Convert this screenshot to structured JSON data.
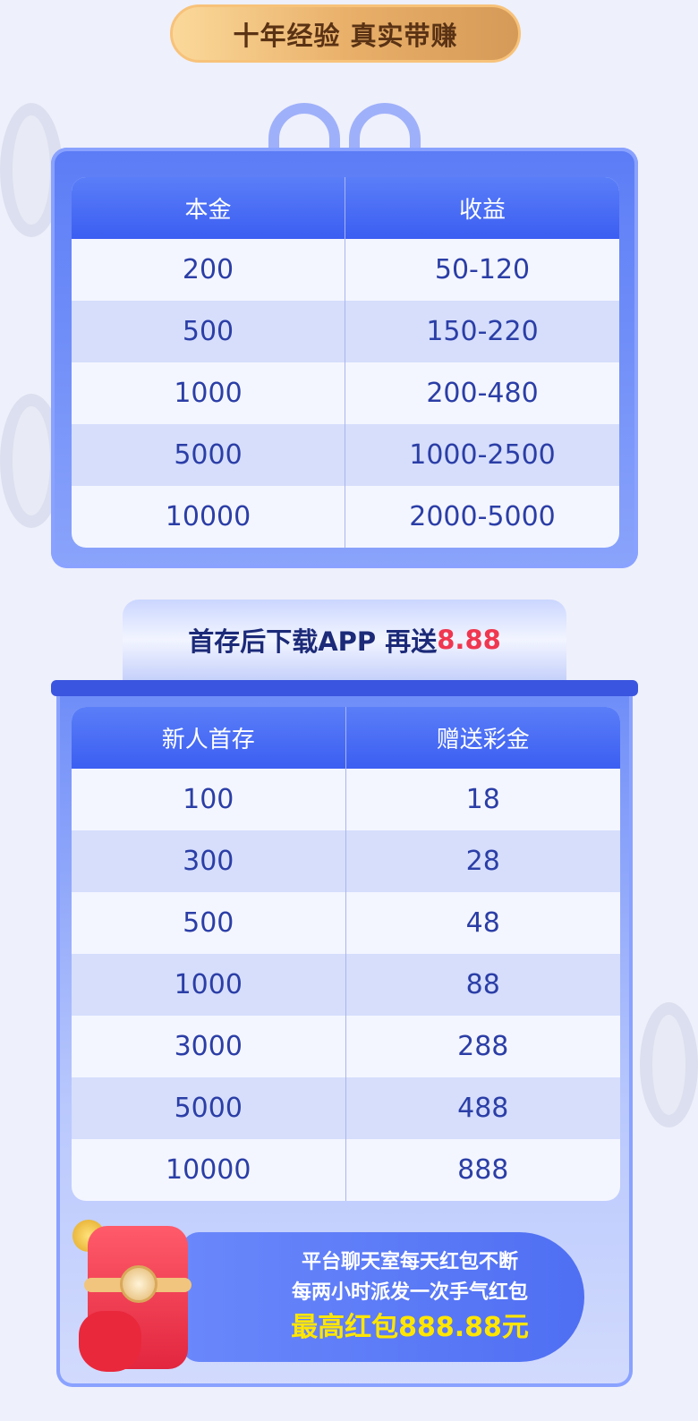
{
  "header": {
    "slogan": "十年经验 真实带赚"
  },
  "table1": {
    "headers": [
      "本金",
      "收益"
    ],
    "rows": [
      [
        "200",
        "50-120"
      ],
      [
        "500",
        "150-220"
      ],
      [
        "1000",
        "200-480"
      ],
      [
        "5000",
        "1000-2500"
      ],
      [
        "10000",
        "2000-5000"
      ]
    ]
  },
  "banner": {
    "text": "首存后下载APP 再送",
    "highlight": "8.88"
  },
  "table2": {
    "headers": [
      "新人首存",
      "赠送彩金"
    ],
    "rows": [
      [
        "100",
        "18"
      ],
      [
        "300",
        "28"
      ],
      [
        "500",
        "48"
      ],
      [
        "1000",
        "88"
      ],
      [
        "3000",
        "288"
      ],
      [
        "5000",
        "488"
      ],
      [
        "10000",
        "888"
      ]
    ]
  },
  "red_packet": {
    "line1": "平台聊天室每天红包不断",
    "line2": "每两小时派发一次手气红包",
    "line3": "最高红包888.88元"
  },
  "colors": {
    "accent": "#4a6cf4",
    "highlight_red": "#f0374f",
    "highlight_yellow": "#ffe600"
  }
}
